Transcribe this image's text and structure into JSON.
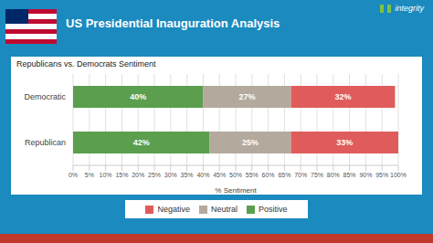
{
  "chart_data": {
    "type": "bar",
    "title": "US Presidential Inauguration Analysis",
    "subtitle": "Republicans vs. Democrats Sentiment",
    "annotations": [
      "integrity"
    ],
    "orientation": "horizontal",
    "stacked": true,
    "data_labels": true,
    "grid": true,
    "legend": "bottom",
    "categories": [
      "Democratic",
      "Republican"
    ],
    "series": [
      {
        "name": "Positive",
        "color": "#5a9e4e",
        "values": [
          40,
          42
        ],
        "value_labels": [
          "40%",
          "42%"
        ]
      },
      {
        "name": "Neutral",
        "color": "#b3a99c",
        "values": [
          27,
          25
        ],
        "value_labels": [
          "27%",
          "25%"
        ]
      },
      {
        "name": "Negative",
        "color": "#e05c5c",
        "values": [
          32,
          33
        ],
        "value_labels": [
          "32%",
          "33%"
        ]
      }
    ],
    "xlabel": "% Sentiment",
    "xlim": [
      0,
      100
    ],
    "xticks": [
      {
        "value": 0,
        "label": "0%"
      },
      {
        "value": 5,
        "label": "5%"
      },
      {
        "value": 10,
        "label": "10%"
      },
      {
        "value": 15,
        "label": "15%"
      },
      {
        "value": 20,
        "label": "20%"
      },
      {
        "value": 25,
        "label": "25%"
      },
      {
        "value": 30,
        "label": "30%"
      },
      {
        "value": 35,
        "label": "35%"
      },
      {
        "value": 40,
        "label": "40%"
      },
      {
        "value": 45,
        "label": "45%"
      },
      {
        "value": 50,
        "label": "50%"
      },
      {
        "value": 55,
        "label": "55%"
      },
      {
        "value": 60,
        "label": "60%"
      },
      {
        "value": 65,
        "label": "65%"
      },
      {
        "value": 70,
        "label": "70%"
      },
      {
        "value": 75,
        "label": "75%"
      },
      {
        "value": 80,
        "label": "80%"
      },
      {
        "value": 85,
        "label": "85%"
      },
      {
        "value": 90,
        "label": "90%"
      },
      {
        "value": 95,
        "label": "95%"
      },
      {
        "value": 100,
        "label": "100%"
      }
    ]
  }
}
